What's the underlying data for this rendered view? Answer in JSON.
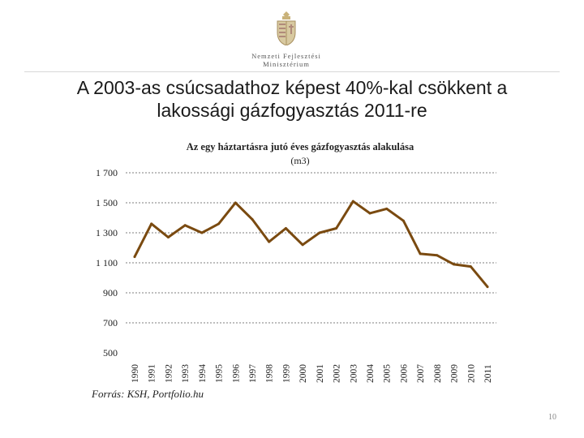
{
  "logo": {
    "line1": "Nemzeti Fejlesztési",
    "line2": "Minisztérium"
  },
  "slide": {
    "title_line1": "A 2003-as csúcsadathoz képest 40%-kal csökkent a",
    "title_line2": "lakossági gázfogyasztás 2011-re",
    "source": "Forrás: KSH, Portfolio.hu",
    "page_number": "10"
  },
  "colors": {
    "line": "#7a4a10",
    "grid": "#7f7f7f"
  },
  "chart_data": {
    "type": "line",
    "title": "Az egy háztartásra jutó éves gázfogyasztás alakulása",
    "unit": "(m3)",
    "xlabel": "",
    "ylabel": "",
    "ylim": [
      500,
      1700
    ],
    "yticks": [
      500,
      700,
      900,
      1100,
      1300,
      1500,
      1700
    ],
    "ytick_labels": [
      "500",
      "700",
      "900",
      "1 100",
      "1 300",
      "1 500",
      "1 700"
    ],
    "grid": "horizontal dashed",
    "x": [
      "1990",
      "1991",
      "1992",
      "1993",
      "1994",
      "1995",
      "1996",
      "1997",
      "1998",
      "1999",
      "2000",
      "2001",
      "2002",
      "2003",
      "2004",
      "2005",
      "2006",
      "2007",
      "2008",
      "2009",
      "2010",
      "2011"
    ],
    "series": [
      {
        "values": [
          1140,
          1360,
          1270,
          1350,
          1300,
          1360,
          1500,
          1390,
          1240,
          1330,
          1220,
          1300,
          1330,
          1510,
          1430,
          1460,
          1380,
          1160,
          1150,
          1090,
          1075,
          940
        ]
      }
    ]
  }
}
